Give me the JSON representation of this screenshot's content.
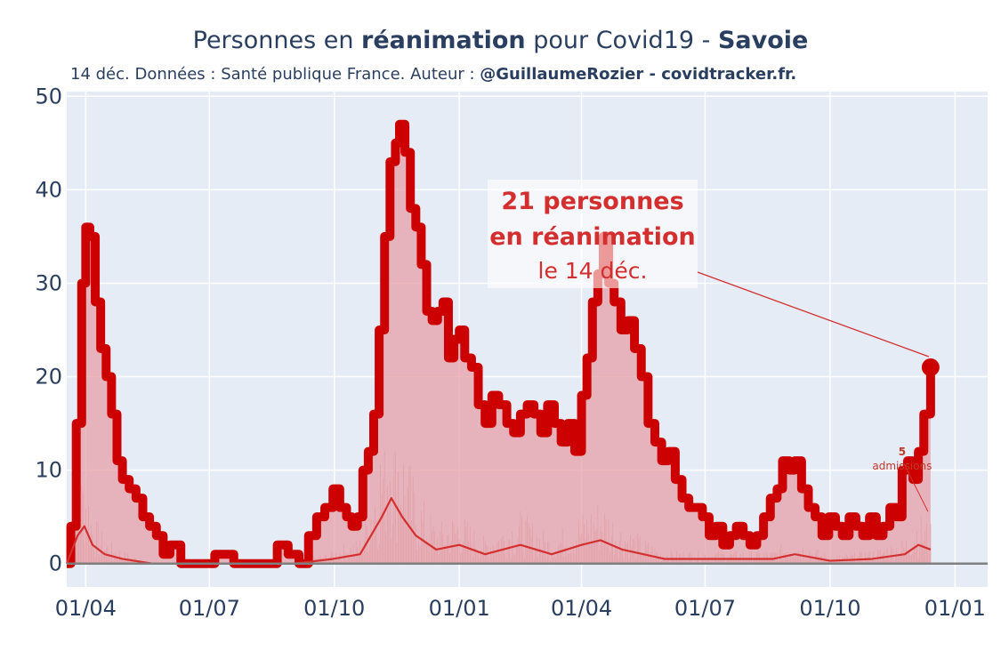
{
  "title": {
    "part1": "Personnes en ",
    "bold1": "réanimation",
    "part2": " pour Covid19 - ",
    "bold2": "Savoie"
  },
  "subtitle": {
    "text": "14 déc. Données : Santé publique France. Auteur : ",
    "bold": "@GuillaumeRozier - covidtracker.fr."
  },
  "annotation": {
    "line1": "21 personnes",
    "line2": "en réanimation",
    "line3": "le 14 déc."
  },
  "admissions_annotation": {
    "value": "5",
    "label": "admissions"
  },
  "colors": {
    "line": "#cc0000",
    "fill": "#e6a0a8",
    "plot_bg": "#e5ecf6",
    "admissions": "#d32f2f"
  },
  "chart_data": {
    "type": "line",
    "title": "Personnes en réanimation pour Covid19 - Savoie",
    "xlabel": "",
    "ylabel": "",
    "ylim": [
      -2.5,
      50.5
    ],
    "x_tick_labels": [
      "01/04",
      "01/07",
      "01/10",
      "01/01",
      "01/04",
      "01/07",
      "01/10",
      "01/01"
    ],
    "x_tick_dates": [
      "2020-04-01",
      "2020-07-01",
      "2020-10-01",
      "2021-01-01",
      "2021-04-01",
      "2021-07-01",
      "2021-10-01",
      "2022-01-01"
    ],
    "y_tick_labels": [
      "0",
      "10",
      "20",
      "30",
      "40",
      "50"
    ],
    "y_ticks": [
      0,
      10,
      20,
      30,
      40,
      50
    ],
    "x_range": [
      "2020-03-18",
      "2022-01-25"
    ],
    "grid": true,
    "series": [
      {
        "values_kind": "reanimation",
        "points": [
          [
            "2020-03-18",
            0
          ],
          [
            "2020-03-21",
            4
          ],
          [
            "2020-03-25",
            15
          ],
          [
            "2020-03-29",
            30
          ],
          [
            "2020-04-01",
            36
          ],
          [
            "2020-04-04",
            35
          ],
          [
            "2020-04-08",
            28
          ],
          [
            "2020-04-12",
            23
          ],
          [
            "2020-04-16",
            20
          ],
          [
            "2020-04-20",
            16
          ],
          [
            "2020-04-24",
            11
          ],
          [
            "2020-04-28",
            9
          ],
          [
            "2020-05-03",
            8
          ],
          [
            "2020-05-08",
            7
          ],
          [
            "2020-05-13",
            5
          ],
          [
            "2020-05-18",
            4
          ],
          [
            "2020-05-23",
            3
          ],
          [
            "2020-05-28",
            1
          ],
          [
            "2020-06-02",
            2
          ],
          [
            "2020-06-06",
            2
          ],
          [
            "2020-06-10",
            0
          ],
          [
            "2020-06-20",
            0
          ],
          [
            "2020-06-28",
            0
          ],
          [
            "2020-07-05",
            1
          ],
          [
            "2020-07-12",
            1
          ],
          [
            "2020-07-19",
            0
          ],
          [
            "2020-07-30",
            0
          ],
          [
            "2020-08-10",
            0
          ],
          [
            "2020-08-20",
            2
          ],
          [
            "2020-08-28",
            1
          ],
          [
            "2020-09-05",
            0
          ],
          [
            "2020-09-12",
            3
          ],
          [
            "2020-09-18",
            5
          ],
          [
            "2020-09-24",
            6
          ],
          [
            "2020-09-30",
            8
          ],
          [
            "2020-10-05",
            6
          ],
          [
            "2020-10-10",
            5
          ],
          [
            "2020-10-14",
            4
          ],
          [
            "2020-10-18",
            5
          ],
          [
            "2020-10-22",
            10
          ],
          [
            "2020-10-26",
            12
          ],
          [
            "2020-10-30",
            16
          ],
          [
            "2020-11-03",
            25
          ],
          [
            "2020-11-07",
            35
          ],
          [
            "2020-11-11",
            43
          ],
          [
            "2020-11-15",
            45
          ],
          [
            "2020-11-18",
            47
          ],
          [
            "2020-11-22",
            44
          ],
          [
            "2020-11-26",
            38
          ],
          [
            "2020-11-30",
            36
          ],
          [
            "2020-12-04",
            32
          ],
          [
            "2020-12-08",
            27
          ],
          [
            "2020-12-12",
            26
          ],
          [
            "2020-12-16",
            27
          ],
          [
            "2020-12-20",
            28
          ],
          [
            "2020-12-24",
            22
          ],
          [
            "2020-12-28",
            24
          ],
          [
            "2021-01-01",
            25
          ],
          [
            "2021-01-05",
            22
          ],
          [
            "2021-01-10",
            21
          ],
          [
            "2021-01-15",
            17
          ],
          [
            "2021-01-20",
            15
          ],
          [
            "2021-01-25",
            18
          ],
          [
            "2021-01-30",
            17
          ],
          [
            "2021-02-05",
            15
          ],
          [
            "2021-02-10",
            14
          ],
          [
            "2021-02-15",
            16
          ],
          [
            "2021-02-20",
            17
          ],
          [
            "2021-02-25",
            16
          ],
          [
            "2021-03-02",
            14
          ],
          [
            "2021-03-07",
            17
          ],
          [
            "2021-03-12",
            15
          ],
          [
            "2021-03-17",
            13
          ],
          [
            "2021-03-22",
            15
          ],
          [
            "2021-03-27",
            12
          ],
          [
            "2021-04-01",
            18
          ],
          [
            "2021-04-05",
            22
          ],
          [
            "2021-04-09",
            28
          ],
          [
            "2021-04-13",
            31
          ],
          [
            "2021-04-17",
            35
          ],
          [
            "2021-04-21",
            30
          ],
          [
            "2021-04-25",
            28
          ],
          [
            "2021-04-30",
            25
          ],
          [
            "2021-05-05",
            26
          ],
          [
            "2021-05-10",
            23
          ],
          [
            "2021-05-15",
            20
          ],
          [
            "2021-05-20",
            15
          ],
          [
            "2021-05-25",
            13
          ],
          [
            "2021-05-30",
            11
          ],
          [
            "2021-06-04",
            12
          ],
          [
            "2021-06-09",
            9
          ],
          [
            "2021-06-14",
            7
          ],
          [
            "2021-06-19",
            6
          ],
          [
            "2021-06-24",
            6
          ],
          [
            "2021-06-29",
            5
          ],
          [
            "2021-07-04",
            3
          ],
          [
            "2021-07-09",
            4
          ],
          [
            "2021-07-14",
            2
          ],
          [
            "2021-07-19",
            3
          ],
          [
            "2021-07-24",
            4
          ],
          [
            "2021-07-29",
            3
          ],
          [
            "2021-08-03",
            2
          ],
          [
            "2021-08-08",
            3
          ],
          [
            "2021-08-13",
            5
          ],
          [
            "2021-08-18",
            7
          ],
          [
            "2021-08-23",
            8
          ],
          [
            "2021-08-27",
            11
          ],
          [
            "2021-09-01",
            10
          ],
          [
            "2021-09-05",
            11
          ],
          [
            "2021-09-10",
            8
          ],
          [
            "2021-09-15",
            6
          ],
          [
            "2021-09-20",
            5
          ],
          [
            "2021-09-25",
            3
          ],
          [
            "2021-09-30",
            5
          ],
          [
            "2021-10-05",
            4
          ],
          [
            "2021-10-10",
            3
          ],
          [
            "2021-10-15",
            5
          ],
          [
            "2021-10-20",
            4
          ],
          [
            "2021-10-25",
            3
          ],
          [
            "2021-10-30",
            5
          ],
          [
            "2021-11-04",
            3
          ],
          [
            "2021-11-09",
            4
          ],
          [
            "2021-11-14",
            6
          ],
          [
            "2021-11-19",
            5
          ],
          [
            "2021-11-23",
            10
          ],
          [
            "2021-11-27",
            11
          ],
          [
            "2021-12-01",
            9
          ],
          [
            "2021-12-05",
            12
          ],
          [
            "2021-12-09",
            16
          ],
          [
            "2021-12-14",
            21
          ]
        ]
      },
      {
        "values_kind": "admissions_smoothed",
        "points": [
          [
            "2020-03-18",
            0
          ],
          [
            "2020-03-26",
            3
          ],
          [
            "2020-03-31",
            4
          ],
          [
            "2020-04-06",
            2
          ],
          [
            "2020-04-15",
            1
          ],
          [
            "2020-04-28",
            0.5
          ],
          [
            "2020-05-20",
            0
          ],
          [
            "2020-07-01",
            0
          ],
          [
            "2020-09-01",
            0
          ],
          [
            "2020-09-30",
            0.5
          ],
          [
            "2020-10-20",
            1
          ],
          [
            "2020-11-05",
            5
          ],
          [
            "2020-11-12",
            7
          ],
          [
            "2020-11-20",
            5
          ],
          [
            "2020-11-30",
            3
          ],
          [
            "2020-12-15",
            1.5
          ],
          [
            "2021-01-01",
            2
          ],
          [
            "2021-01-20",
            1
          ],
          [
            "2021-02-15",
            2
          ],
          [
            "2021-03-10",
            1
          ],
          [
            "2021-04-01",
            2
          ],
          [
            "2021-04-15",
            2.5
          ],
          [
            "2021-05-01",
            1.5
          ],
          [
            "2021-06-01",
            0.5
          ],
          [
            "2021-07-01",
            0.5
          ],
          [
            "2021-08-20",
            0.5
          ],
          [
            "2021-09-05",
            1
          ],
          [
            "2021-10-01",
            0.3
          ],
          [
            "2021-11-01",
            0.5
          ],
          [
            "2021-11-25",
            1
          ],
          [
            "2021-12-05",
            2
          ],
          [
            "2021-12-14",
            1.5
          ]
        ]
      }
    ],
    "last_point": {
      "x": "2021-12-14",
      "y": 21
    },
    "admissions_last": {
      "x": "2021-12-14",
      "y": 5
    }
  }
}
